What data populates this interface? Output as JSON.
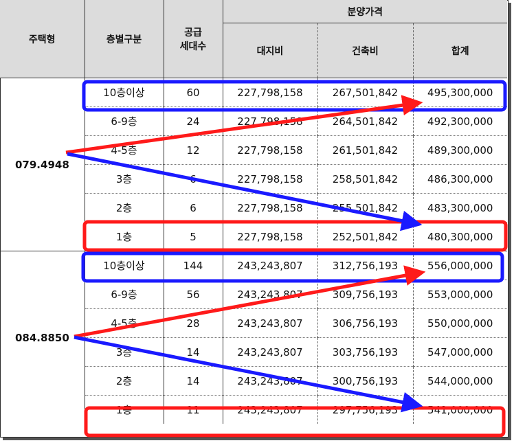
{
  "headers": {
    "housing_type": "주택형",
    "floor_division": "층별구분",
    "units_line1": "공급",
    "units_line2": "세대수",
    "sale_price": "분양가격",
    "land_cost": "대지비",
    "building_cost": "건축비",
    "total": "합계"
  },
  "groups": [
    {
      "type": "079.4948",
      "rows": [
        {
          "floor": "10층이상",
          "units": "60",
          "land": "227,798,158",
          "building": "267,501,842",
          "total": "495,300,000"
        },
        {
          "floor": "6-9층",
          "units": "24",
          "land": "227,798,158",
          "building": "264,501,842",
          "total": "492,300,000"
        },
        {
          "floor": "4-5층",
          "units": "12",
          "land": "227,798,158",
          "building": "261,501,842",
          "total": "489,300,000"
        },
        {
          "floor": "3층",
          "units": "6",
          "land": "227,798,158",
          "building": "258,501,842",
          "total": "486,300,000"
        },
        {
          "floor": "2층",
          "units": "6",
          "land": "227,798,158",
          "building": "255,501,842",
          "total": "483,300,000"
        },
        {
          "floor": "1층",
          "units": "5",
          "land": "227,798,158",
          "building": "252,501,842",
          "total": "480,300,000"
        }
      ]
    },
    {
      "type": "084.8850",
      "rows": [
        {
          "floor": "10층이상",
          "units": "144",
          "land": "243,243,807",
          "building": "312,756,193",
          "total": "556,000,000"
        },
        {
          "floor": "6-9층",
          "units": "56",
          "land": "243,243,807",
          "building": "309,756,193",
          "total": "553,000,000"
        },
        {
          "floor": "4-5층",
          "units": "28",
          "land": "243,243,807",
          "building": "306,756,193",
          "total": "550,000,000"
        },
        {
          "floor": "3층",
          "units": "14",
          "land": "243,243,807",
          "building": "303,756,193",
          "total": "547,000,000"
        },
        {
          "floor": "2층",
          "units": "14",
          "land": "243,243,807",
          "building": "300,756,193",
          "total": "544,000,000"
        },
        {
          "floor": "1층",
          "units": "11",
          "land": "243,243,807",
          "building": "297,756,193",
          "total": "541,000,000"
        }
      ]
    }
  ],
  "annotation_colors": {
    "top_floor_box": "#1a1aff",
    "ground_floor_box": "#ff1a1a",
    "arrow_up": "#ff1a1a",
    "arrow_down": "#1a1aff"
  }
}
